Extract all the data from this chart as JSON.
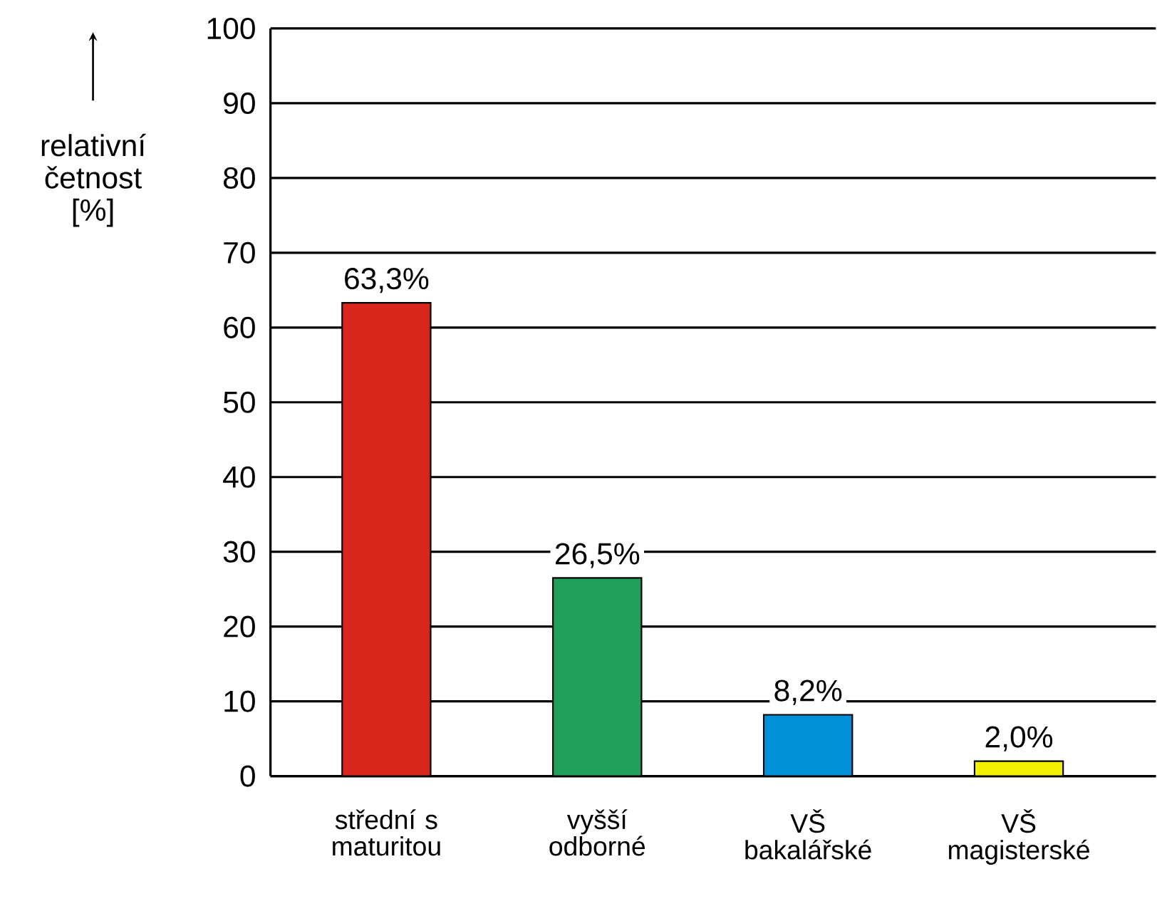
{
  "chart_data": {
    "type": "bar",
    "ylabel": "relativní četnost [%]",
    "categories": [
      "střední s maturitou",
      "vyšší odborné",
      "VŠ bakalářské",
      "VŠ magisterské"
    ],
    "values": [
      63.3,
      26.5,
      8.2,
      2.0
    ],
    "colors": [
      "#d9261c",
      "#20a05a",
      "#0090d8",
      "#f0f000"
    ],
    "value_labels": [
      "63,3%",
      "26,5%",
      "8,2%",
      "2,0%"
    ],
    "ylim": [
      0,
      100
    ],
    "yticks": [
      0,
      10,
      20,
      30,
      40,
      50,
      60,
      70,
      80,
      90,
      100
    ],
    "grid": "y"
  }
}
